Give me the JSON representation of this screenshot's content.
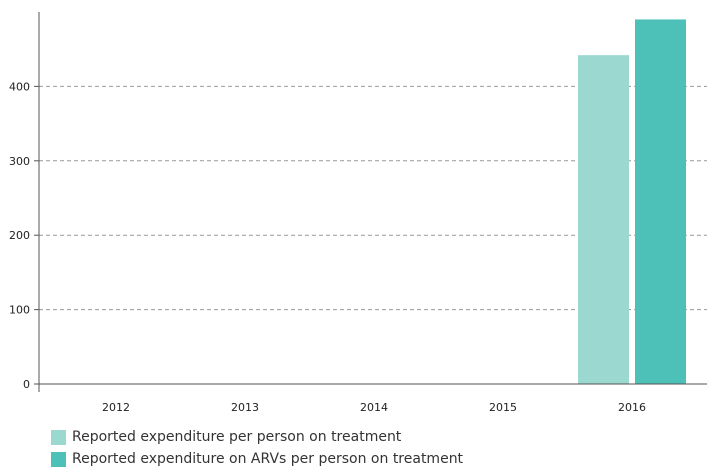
{
  "chart_data": {
    "type": "bar",
    "categories": [
      "2012",
      "2013",
      "2014",
      "2015",
      "2016"
    ],
    "series": [
      {
        "name": "Reported expenditure per person on treatment",
        "color": "#9bd8d0",
        "values": [
          null,
          null,
          null,
          null,
          442
        ]
      },
      {
        "name": "Reported expenditure on ARVs per person on treatment",
        "color": "#4dc1b7",
        "values": [
          null,
          null,
          null,
          null,
          490
        ]
      }
    ],
    "ylim": [
      0,
      500
    ],
    "yticks": [
      0,
      100,
      200,
      300,
      400
    ],
    "grid": true,
    "legend_position": "bottom-left"
  }
}
